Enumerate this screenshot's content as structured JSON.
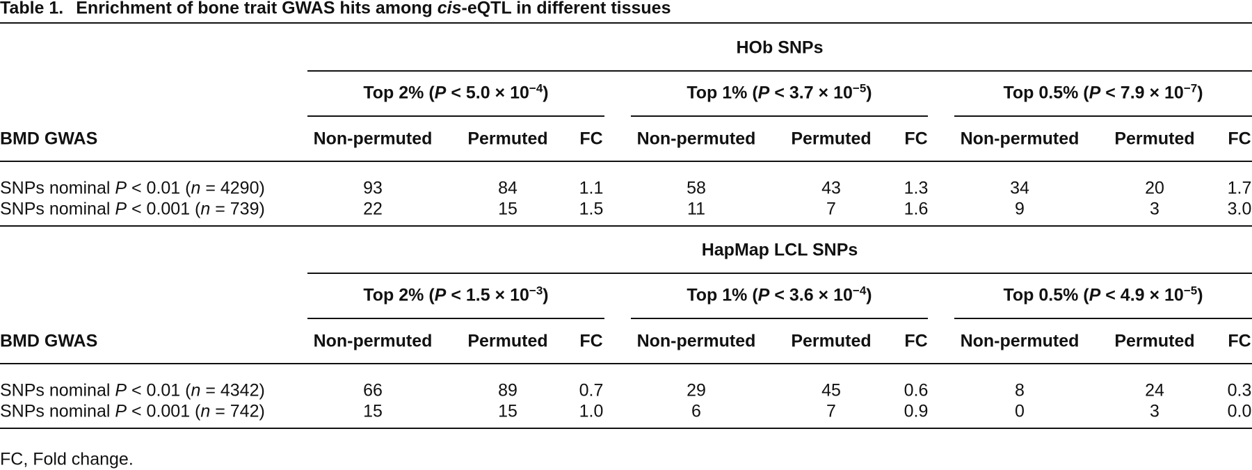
{
  "title": {
    "label": "Table 1.",
    "text": [
      {
        "text": "Enrichment of bone trait GWAS hits among "
      },
      {
        "text": "cis",
        "style": "italic"
      },
      {
        "text": "-eQTL in different tissues"
      }
    ]
  },
  "panels": [
    {
      "spanner": "HOb SNPs",
      "stub_header": "BMD GWAS",
      "groups": [
        {
          "header": [
            {
              "text": "Top 2% ("
            },
            {
              "text": "P",
              "style": "italic"
            },
            {
              "text": " < 5.0 × 10"
            },
            {
              "text": "−4",
              "style": "sup"
            },
            {
              "text": ")"
            }
          ],
          "columns": [
            "Non-permuted",
            "Permuted",
            "FC"
          ]
        },
        {
          "header": [
            {
              "text": "Top 1% ("
            },
            {
              "text": "P",
              "style": "italic"
            },
            {
              "text": " < 3.7 × 10"
            },
            {
              "text": "−5",
              "style": "sup"
            },
            {
              "text": ")"
            }
          ],
          "columns": [
            "Non-permuted",
            "Permuted",
            "FC"
          ]
        },
        {
          "header": [
            {
              "text": "Top 0.5% ("
            },
            {
              "text": "P",
              "style": "italic"
            },
            {
              "text": " < 7.9 × 10"
            },
            {
              "text": "−7",
              "style": "sup"
            },
            {
              "text": ")"
            }
          ],
          "columns": [
            "Non-permuted",
            "Permuted",
            "FC"
          ]
        }
      ],
      "rows": [
        {
          "label": [
            {
              "text": "SNPs nominal "
            },
            {
              "text": "P",
              "style": "italic"
            },
            {
              "text": " < 0.01 ("
            },
            {
              "text": "n",
              "style": "italic"
            },
            {
              "text": " = 4290)"
            }
          ],
          "cells": [
            93,
            84,
            "1.1",
            58,
            43,
            "1.3",
            34,
            20,
            "1.7"
          ]
        },
        {
          "label": [
            {
              "text": "SNPs nominal "
            },
            {
              "text": "P",
              "style": "italic"
            },
            {
              "text": " < 0.001 ("
            },
            {
              "text": "n",
              "style": "italic"
            },
            {
              "text": " = 739)"
            }
          ],
          "cells": [
            22,
            15,
            "1.5",
            11,
            7,
            "1.6",
            9,
            3,
            "3.0"
          ]
        }
      ]
    },
    {
      "spanner": "HapMap LCL SNPs",
      "stub_header": "BMD GWAS",
      "groups": [
        {
          "header": [
            {
              "text": "Top 2% ("
            },
            {
              "text": "P",
              "style": "italic"
            },
            {
              "text": " < 1.5 × 10"
            },
            {
              "text": "−3",
              "style": "sup"
            },
            {
              "text": ")"
            }
          ],
          "columns": [
            "Non-permuted",
            "Permuted",
            "FC"
          ]
        },
        {
          "header": [
            {
              "text": "Top 1% ("
            },
            {
              "text": "P",
              "style": "italic"
            },
            {
              "text": " < 3.6 × 10"
            },
            {
              "text": "−4",
              "style": "sup"
            },
            {
              "text": ")"
            }
          ],
          "columns": [
            "Non-permuted",
            "Permuted",
            "FC"
          ]
        },
        {
          "header": [
            {
              "text": "Top 0.5% ("
            },
            {
              "text": "P",
              "style": "italic"
            },
            {
              "text": " < 4.9 × 10"
            },
            {
              "text": "−5",
              "style": "sup"
            },
            {
              "text": ")"
            }
          ],
          "columns": [
            "Non-permuted",
            "Permuted",
            "FC"
          ]
        }
      ],
      "rows": [
        {
          "label": [
            {
              "text": "SNPs nominal "
            },
            {
              "text": "P",
              "style": "italic"
            },
            {
              "text": " < 0.01 ("
            },
            {
              "text": "n",
              "style": "italic"
            },
            {
              "text": " = 4342)"
            }
          ],
          "cells": [
            66,
            89,
            "0.7",
            29,
            45,
            "0.6",
            8,
            24,
            "0.3"
          ]
        },
        {
          "label": [
            {
              "text": "SNPs nominal "
            },
            {
              "text": "P",
              "style": "italic"
            },
            {
              "text": " < 0.001 ("
            },
            {
              "text": "n",
              "style": "italic"
            },
            {
              "text": " = 742)"
            }
          ],
          "cells": [
            15,
            15,
            "1.0",
            6,
            7,
            "0.9",
            0,
            3,
            "0.0"
          ]
        }
      ]
    }
  ],
  "footnote": "FC, Fold change."
}
